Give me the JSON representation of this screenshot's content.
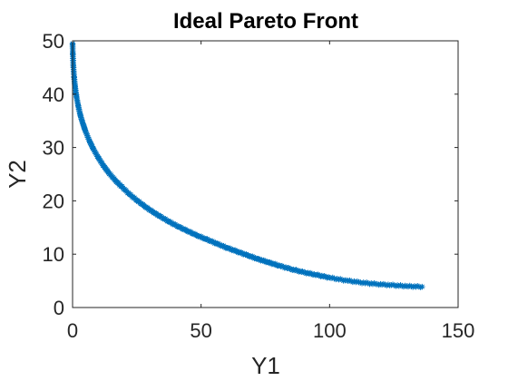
{
  "chart_data": {
    "type": "scatter",
    "title": "Ideal Pareto Front",
    "xlabel": "Y1",
    "ylabel": "Y2",
    "xlim": [
      0,
      150
    ],
    "ylim": [
      0,
      50
    ],
    "xticks": [
      "0",
      "50",
      "100",
      "150"
    ],
    "yticks": [
      "0",
      "10",
      "20",
      "30",
      "40",
      "50"
    ],
    "grid": false,
    "marker": "asterisk",
    "marker_color": "#0072BD",
    "series": [
      {
        "x": [
          0,
          0.1,
          0.3,
          0.6,
          1,
          1.5,
          2.2,
          3,
          4,
          5,
          6.5,
          8,
          10,
          12,
          14,
          16.5,
          19,
          22,
          25,
          28,
          31,
          34,
          37.5,
          41,
          44.5,
          48,
          52,
          56,
          60,
          64,
          68,
          72,
          76,
          80,
          85,
          90,
          95,
          100,
          106,
          112,
          118,
          124,
          130,
          136
        ],
        "y": [
          49.5,
          47.5,
          45.3,
          43.2,
          41.3,
          39.6,
          37.8,
          36.1,
          34.5,
          33.1,
          31.3,
          29.8,
          28.1,
          26.6,
          25.3,
          23.9,
          22.7,
          21.3,
          20.1,
          19.0,
          18.0,
          17.1,
          16.1,
          15.2,
          14.4,
          13.6,
          12.8,
          12.0,
          11.2,
          10.5,
          9.8,
          9.1,
          8.5,
          7.9,
          7.2,
          6.6,
          6.1,
          5.6,
          5.1,
          4.7,
          4.4,
          4.2,
          4.0,
          3.9
        ]
      }
    ]
  }
}
